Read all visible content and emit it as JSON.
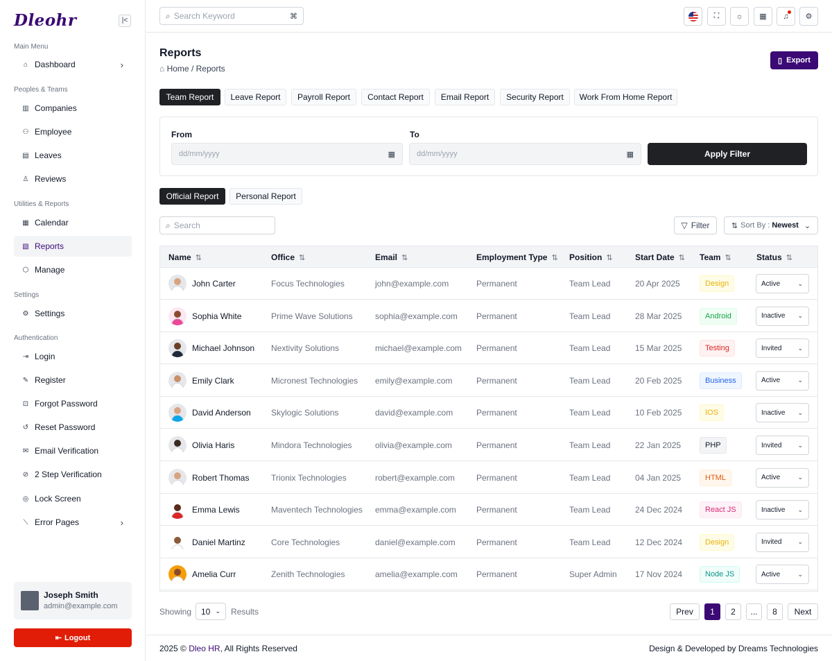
{
  "app": {
    "logo": "Dleohr"
  },
  "sidebar": {
    "sections": [
      {
        "title": "Main Menu"
      },
      {
        "title": "Peoples & Teams"
      },
      {
        "title": "Utilities & Reports"
      },
      {
        "title": "Settings"
      },
      {
        "title": "Authentication"
      }
    ],
    "items": [
      {
        "label": "Dashboard",
        "icon": "home-icon"
      },
      {
        "label": "Companies",
        "icon": "building-icon"
      },
      {
        "label": "Employee",
        "icon": "users-icon"
      },
      {
        "label": "Leaves",
        "icon": "calendar-leave-icon"
      },
      {
        "label": "Reviews",
        "icon": "user-icon"
      },
      {
        "label": "Calendar",
        "icon": "calendar-icon"
      },
      {
        "label": "Reports",
        "icon": "report-icon"
      },
      {
        "label": "Manage",
        "icon": "hexagon-icon"
      },
      {
        "label": "Settings",
        "icon": "gear-icon"
      },
      {
        "label": "Login",
        "icon": "login-icon"
      },
      {
        "label": "Register",
        "icon": "register-icon"
      },
      {
        "label": "Forgot Password",
        "icon": "lock-icon"
      },
      {
        "label": "Reset Password",
        "icon": "reset-icon"
      },
      {
        "label": "Email Verification",
        "icon": "mail-icon"
      },
      {
        "label": "2 Step Verification",
        "icon": "check-circle-icon"
      },
      {
        "label": "Lock Screen",
        "icon": "lock-screen-icon"
      },
      {
        "label": "Error Pages",
        "icon": "error-icon"
      }
    ],
    "user": {
      "name": "Joseph Smith",
      "email": "admin@example.com"
    },
    "logout": "Logout"
  },
  "topbar": {
    "search_placeholder": "Search Keyword"
  },
  "page": {
    "title": "Reports",
    "breadcrumb_home": "Home",
    "breadcrumb_sep": "/",
    "breadcrumb_current": "Reports",
    "export": "Export"
  },
  "tabs": [
    "Team Report",
    "Leave Report",
    "Payroll Report",
    "Contact Report",
    "Email Report",
    "Security Report",
    "Work From Home Report"
  ],
  "filter": {
    "from_label": "From",
    "to_label": "To",
    "from_placeholder": "dd/mm/yyyy",
    "to_placeholder": "dd/mm/yyyy",
    "apply": "Apply Filter"
  },
  "subtabs": [
    "Official Report",
    "Personal Report"
  ],
  "toolbar": {
    "search_placeholder": "Search",
    "filter": "Filter",
    "sort_label": "Sort By :",
    "sort_value": "Newest"
  },
  "table": {
    "columns": [
      "Name",
      "Office",
      "Email",
      "Employment Type",
      "Position",
      "Start Date",
      "Team",
      "Status"
    ],
    "rows": [
      {
        "name": "John Carter",
        "office": "Focus Technologies",
        "email": "john@example.com",
        "type": "Permanent",
        "position": "Team Lead",
        "date": "20 Apr 2025",
        "team": "Design",
        "status": "Active"
      },
      {
        "name": "Sophia White",
        "office": "Prime Wave Solutions",
        "email": "sophia@example.com",
        "type": "Permanent",
        "position": "Team Lead",
        "date": "28 Mar 2025",
        "team": "Android",
        "status": "Inactive"
      },
      {
        "name": "Michael Johnson",
        "office": "Nextivity Solutions",
        "email": "michael@example.com",
        "type": "Permanent",
        "position": "Team Lead",
        "date": "15 Mar 2025",
        "team": "Testing",
        "status": "Invited"
      },
      {
        "name": "Emily Clark",
        "office": "Micronest Technologies",
        "email": "emily@example.com",
        "type": "Permanent",
        "position": "Team Lead",
        "date": "20 Feb 2025",
        "team": "Business",
        "status": "Active"
      },
      {
        "name": "David Anderson",
        "office": "Skylogic Solutions",
        "email": "david@example.com",
        "type": "Permanent",
        "position": "Team Lead",
        "date": "10 Feb 2025",
        "team": "IOS",
        "status": "Inactive"
      },
      {
        "name": "Olivia Haris",
        "office": "Mindora Technologies",
        "email": "olivia@example.com",
        "type": "Permanent",
        "position": "Team Lead",
        "date": "22 Jan 2025",
        "team": "PHP",
        "status": "Invited"
      },
      {
        "name": "Robert Thomas",
        "office": "Trionix Technologies",
        "email": "robert@example.com",
        "type": "Permanent",
        "position": "Team Lead",
        "date": "04 Jan 2025",
        "team": "HTML",
        "status": "Active"
      },
      {
        "name": "Emma Lewis",
        "office": "Maventech Technologies",
        "email": "emma@example.com",
        "type": "Permanent",
        "position": "Team Lead",
        "date": "24 Dec 2024",
        "team": "React JS",
        "status": "Inactive"
      },
      {
        "name": "Daniel Martinz",
        "office": "Core Technologies",
        "email": "daniel@example.com",
        "type": "Permanent",
        "position": "Team Lead",
        "date": "12 Dec 2024",
        "team": "Design",
        "status": "Invited"
      },
      {
        "name": "Amelia Curr",
        "office": "Zenith Technologies",
        "email": "amelia@example.com",
        "type": "Permanent",
        "position": "Super Admin",
        "date": "17 Nov 2024",
        "team": "Node JS",
        "status": "Active"
      }
    ]
  },
  "team_colors": {
    "Design": {
      "bg": "#fefce8",
      "fg": "#eab308",
      "bd": "#fef9c3"
    },
    "Android": {
      "bg": "#f0fdf4",
      "fg": "#16a34a",
      "bd": "#dcfce7"
    },
    "Testing": {
      "bg": "#fef2f2",
      "fg": "#dc2626",
      "bd": "#fee2e2"
    },
    "Business": {
      "bg": "#eff6ff",
      "fg": "#2563eb",
      "bd": "#dbeafe"
    },
    "IOS": {
      "bg": "#fefce8",
      "fg": "#eab308",
      "bd": "#fef9c3"
    },
    "PHP": {
      "bg": "#f3f4f6",
      "fg": "#111827",
      "bd": "#e5e7eb"
    },
    "HTML": {
      "bg": "#fff7ed",
      "fg": "#ea580c",
      "bd": "#ffedd5"
    },
    "React JS": {
      "bg": "#fdf2f8",
      "fg": "#db2777",
      "bd": "#fce7f3"
    },
    "Node JS": {
      "bg": "#f0fdfa",
      "fg": "#0d9488",
      "bd": "#ccfbf1"
    }
  },
  "avatar_colors": [
    {
      "skin": "#d8a47f",
      "shirt": "#ffffff",
      "bg": "#e5e7eb"
    },
    {
      "skin": "#8a4b2d",
      "shirt": "#ec4899",
      "bg": "#fce7f3"
    },
    {
      "skin": "#6b3f26",
      "shirt": "#1f2937",
      "bg": "#e5e7eb"
    },
    {
      "skin": "#c89068",
      "shirt": "#ffffff",
      "bg": "#e5e7eb"
    },
    {
      "skin": "#d8a47f",
      "shirt": "#0ea5e9",
      "bg": "#e5e7eb"
    },
    {
      "skin": "#3a2a20",
      "shirt": "#ffffff",
      "bg": "#e5e7eb"
    },
    {
      "skin": "#d8a47f",
      "shirt": "#ffffff",
      "bg": "#e5e7eb"
    },
    {
      "skin": "#5a2a1a",
      "shirt": "#dc2626",
      "bg": "#ffffff"
    },
    {
      "skin": "#8a5a3a",
      "shirt": "#ffffff",
      "bg": "#ffffff"
    },
    {
      "skin": "#8a4b2d",
      "shirt": "#ffffff",
      "bg": "#f59e0b"
    }
  ],
  "pagination": {
    "showing": "Showing",
    "per_page": "10",
    "results": "Results",
    "prev": "Prev",
    "pages": [
      "1",
      "2",
      "...",
      "8"
    ],
    "next": "Next"
  },
  "footer": {
    "copy_prefix": "2025 ©",
    "copy_link": "Dleo HR",
    "copy_suffix": ", All Rights Reserved",
    "credit": "Design & Developed by Dreams Technologies"
  },
  "colors": {
    "brand": "#3b0a75",
    "danger": "#e11d07",
    "dark": "#1f2125"
  }
}
